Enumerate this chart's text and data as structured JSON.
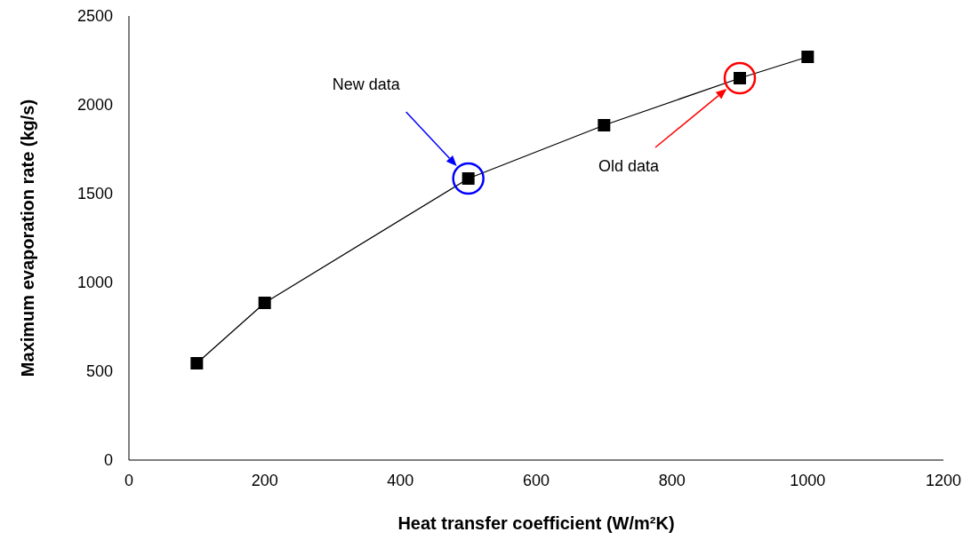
{
  "chart_data": {
    "type": "line",
    "xlabel": "Heat transfer coefficient (W/m²K)",
    "ylabel": "Maximum evaporation rate (kg/s)",
    "x": [
      100,
      200,
      500,
      700,
      900,
      1000
    ],
    "series": [
      {
        "color": "#000000",
        "values": [
          545,
          885,
          1585,
          1885,
          2150,
          2270
        ]
      }
    ],
    "xlim": [
      0,
      1200
    ],
    "xticks": [
      0,
      200,
      400,
      600,
      800,
      1000,
      1200
    ],
    "ylim": [
      0,
      2500
    ],
    "yticks": [
      0,
      500,
      1000,
      1500,
      2000,
      2500
    ],
    "marker": "square",
    "line_style": "solid",
    "grid": false,
    "legend": false,
    "annotations": [
      "New data",
      "Old data"
    ]
  }
}
